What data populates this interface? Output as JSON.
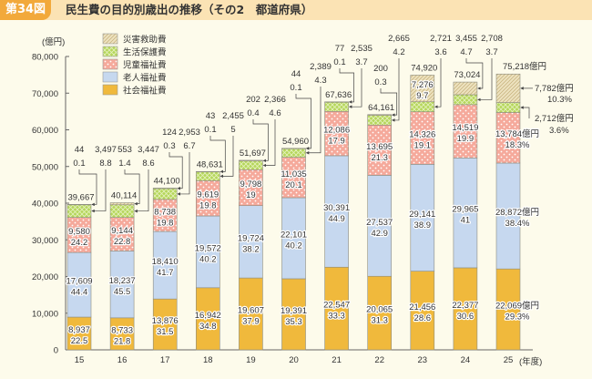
{
  "header": {
    "figure_tag": "第34図",
    "title": "民生費の目的別歳出の推移（その2　都道府県）"
  },
  "chart_data": {
    "type": "bar",
    "stacked": true,
    "title": "民生費の目的別歳出の推移（その2　都道府県）",
    "ylabel": "(億円)",
    "xlabel": "(年度)",
    "unit_label": "億円",
    "ylim": [
      0,
      80000
    ],
    "yticks": [
      0,
      10000,
      20000,
      30000,
      40000,
      50000,
      60000,
      70000,
      80000
    ],
    "ytick_labels": [
      "0",
      "10,000",
      "20,000",
      "30,000",
      "40,000",
      "50,000",
      "60,000",
      "70,000",
      "80,000"
    ],
    "grid": false,
    "legend_position": "top-left",
    "categories": [
      "15",
      "16",
      "17",
      "18",
      "19",
      "20",
      "21",
      "22",
      "23",
      "24",
      "25"
    ],
    "totals": [
      39667,
      40114,
      44100,
      48631,
      51697,
      54960,
      67636,
      64161,
      74920,
      73024,
      75218
    ],
    "series": [
      {
        "name": "社会福祉費",
        "color": "#f0b93c",
        "values": [
          8937,
          8733,
          13876,
          16942,
          19607,
          19391,
          22547,
          20065,
          21456,
          22377,
          22069
        ],
        "percent": [
          22.5,
          21.8,
          31.5,
          34.8,
          37.9,
          35.3,
          33.3,
          31.3,
          28.6,
          30.6,
          29.3
        ]
      },
      {
        "name": "老人福祉費",
        "color": "#c6d8ef",
        "values": [
          17609,
          18237,
          18410,
          19572,
          19724,
          22101,
          30391,
          27537,
          29141,
          29965,
          28872
        ],
        "percent": [
          44.4,
          45.5,
          41.7,
          40.2,
          38.2,
          40.2,
          44.9,
          42.9,
          38.9,
          41.0,
          38.4
        ]
      },
      {
        "name": "児童福祉費",
        "color": "#f5a99b",
        "values": [
          9580,
          9144,
          8738,
          9619,
          9798,
          11035,
          12086,
          13695,
          14326,
          14519,
          13784
        ],
        "percent": [
          24.2,
          22.8,
          19.8,
          19.8,
          19.0,
          20.1,
          17.9,
          21.3,
          19.1,
          19.9,
          18.3
        ]
      },
      {
        "name": "生活保護費",
        "color": "#b5d65a",
        "values": [
          3497,
          3447,
          2953,
          2455,
          2366,
          2389,
          2535,
          2665,
          2721,
          2708,
          2712
        ],
        "percent": [
          8.8,
          8.6,
          6.7,
          5.0,
          4.6,
          4.3,
          3.7,
          4.2,
          3.6,
          3.7,
          3.6
        ]
      },
      {
        "name": "災害救助費",
        "color": "#e6d7a8",
        "values": [
          44,
          553,
          124,
          43,
          202,
          44,
          77,
          200,
          7276,
          3455,
          7782
        ],
        "percent": [
          0.1,
          1.4,
          0.3,
          0.1,
          0.4,
          0.1,
          0.1,
          0.3,
          9.7,
          4.7,
          10.3
        ]
      }
    ]
  }
}
